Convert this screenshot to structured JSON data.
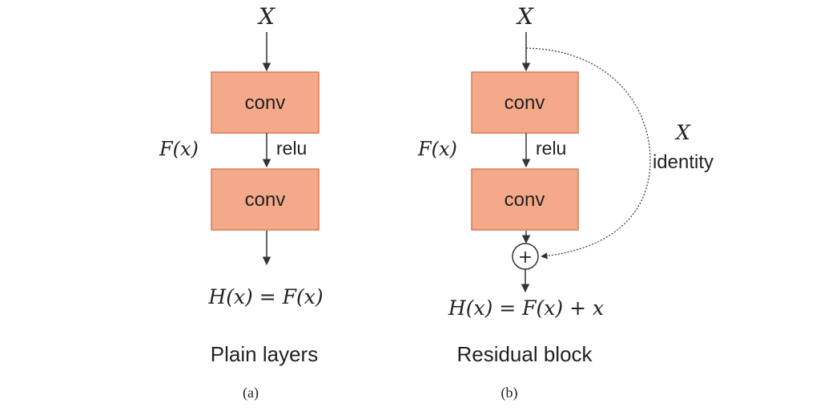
{
  "panel_a": {
    "input_label": "X",
    "conv1_label": "conv",
    "activation_label": "relu",
    "function_label": "F(x)",
    "conv2_label": "conv",
    "output_label": "H(x) = F(x)",
    "title": "Plain layers",
    "caption": "(a)"
  },
  "panel_b": {
    "input_label": "X",
    "conv1_label": "conv",
    "activation_label": "relu",
    "function_label": "F(x)",
    "conv2_label": "conv",
    "skip_label_top": "X",
    "skip_label_bottom": "identity",
    "sum_symbol": "+",
    "output_label": "H(x) = F(x) + x",
    "title": "Residual block",
    "caption": "(b)"
  },
  "colors": {
    "block_fill": "#f4a98a",
    "block_stroke": "#d97a57",
    "line": "#333333"
  }
}
